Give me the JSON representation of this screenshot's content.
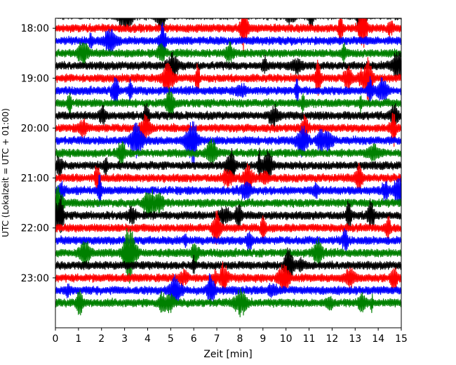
{
  "chart_data": {
    "type": "line",
    "title": "",
    "xlabel": "Zeit  [min]",
    "ylabel": "UTC (Lokalzeit = UTC + 01:00)",
    "xlim": [
      0,
      15
    ],
    "x_ticks": [
      "0",
      "1",
      "2",
      "3",
      "4",
      "5",
      "6",
      "7",
      "8",
      "9",
      "10",
      "11",
      "12",
      "13",
      "14",
      "15"
    ],
    "y_ticks": [
      "18:00",
      "19:00",
      "20:00",
      "21:00",
      "22:00",
      "23:00"
    ],
    "ylim_hours": [
      17.8,
      24.0
    ],
    "trace_start": "17:45",
    "trace_interval_minutes": 15,
    "trace_count": 24,
    "trace_window_minutes": 15,
    "color_cycle": [
      "#000000",
      "#ff0000",
      "#0000ff",
      "#008000"
    ],
    "grid": false,
    "legend": "none"
  }
}
